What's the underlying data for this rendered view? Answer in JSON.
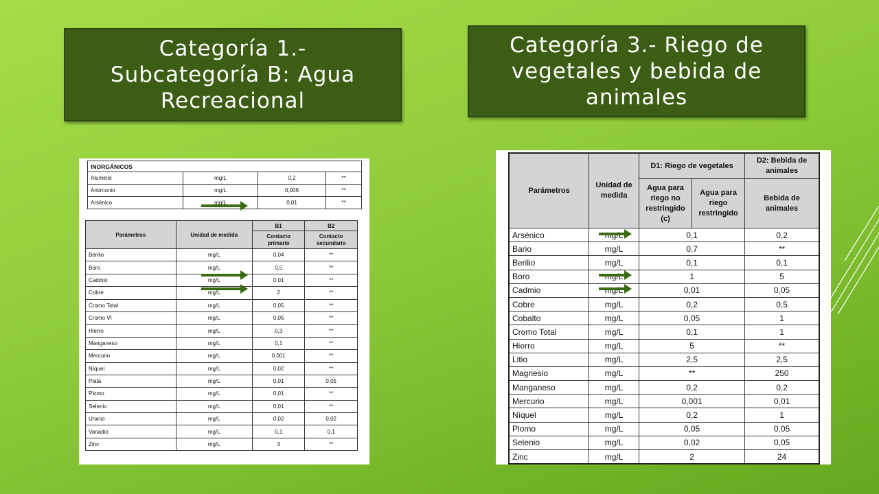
{
  "titles": {
    "left": [
      "Categoría 1.-",
      "Subcategoría B: Agua",
      "Recreacional"
    ],
    "right": [
      "Categoría 3.- Riego de",
      "vegetales y bebida de",
      "animales"
    ]
  },
  "left_table_top": {
    "header": "INORGÁNICOS",
    "rows": [
      [
        "Aluminio",
        "mg/L",
        "0,2",
        "**"
      ],
      [
        "Antimonio",
        "mg/L",
        "0,006",
        "**"
      ],
      [
        "Arsénico",
        "mg/L",
        "0,01",
        "**"
      ]
    ]
  },
  "left_table": {
    "headers": {
      "param": "Parámetros",
      "unit": "Unidad de medida",
      "b1": "B1",
      "b2": "B2",
      "b1_sub": "Contacto primario",
      "b2_sub": "Contacto secundario"
    },
    "rows": [
      [
        "Berilio",
        "mg/L",
        "0,04",
        "**"
      ],
      [
        "Boro",
        "mg/L",
        "0,5",
        "**"
      ],
      [
        "Cadmio",
        "mg/L",
        "0,01",
        "**"
      ],
      [
        "Cobre",
        "mg/L",
        "2",
        "**"
      ],
      [
        "Cromo Total",
        "mg/L",
        "0,05",
        "**"
      ],
      [
        "Cromo VI",
        "mg/L",
        "0,05",
        "**"
      ],
      [
        "Hierro",
        "mg/L",
        "0,3",
        "**"
      ],
      [
        "Manganeso",
        "mg/L",
        "0,1",
        "**"
      ],
      [
        "Mercurio",
        "mg/L",
        "0,001",
        "**"
      ],
      [
        "Níquel",
        "mg/L",
        "0,02",
        "**"
      ],
      [
        "Plata",
        "mg/L",
        "0,01",
        "0,05"
      ],
      [
        "Plomo",
        "mg/L",
        "0,01",
        "**"
      ],
      [
        "Selenio",
        "mg/L",
        "0,01",
        "**"
      ],
      [
        "Uranio",
        "mg/L",
        "0,02",
        "0,02"
      ],
      [
        "Vanadio",
        "mg/L",
        "0,1",
        "0,1"
      ],
      [
        "Zinc",
        "mg/L",
        "3",
        "**"
      ]
    ]
  },
  "right_table": {
    "headers": {
      "param": "Parámetros",
      "unit": "Unidad de medida",
      "d1": "D1: Riego de vegetales",
      "d2": "D2: Bebida de animales",
      "d1_a": "Agua para riego no restringido (c)",
      "d1_b": "Agua para riego restringido",
      "d2_a": "Bebida de animales"
    },
    "rows": [
      [
        "Arsénico",
        "mg/L",
        "0,1",
        "0,2"
      ],
      [
        "Bario",
        "mg/L",
        "0,7",
        "**"
      ],
      [
        "Berilio",
        "mg/L",
        "0,1",
        "0,1"
      ],
      [
        "Boro",
        "mg/L",
        "1",
        "5"
      ],
      [
        "Cadmio",
        "mg/L",
        "0,01",
        "0,05"
      ],
      [
        "Cobre",
        "mg/L",
        "0,2",
        "0,5"
      ],
      [
        "Cobalto",
        "mg/L",
        "0,05",
        "1"
      ],
      [
        "Cromo Total",
        "mg/L",
        "0,1",
        "1"
      ],
      [
        "Hierro",
        "mg/L",
        "5",
        "**"
      ],
      [
        "Litio",
        "mg/L",
        "2,5",
        "2,5"
      ],
      [
        "Magnesio",
        "mg/L",
        "**",
        "250"
      ],
      [
        "Manganeso",
        "mg/L",
        "0,2",
        "0,2"
      ],
      [
        "Mercurio",
        "mg/L",
        "0,001",
        "0,01"
      ],
      [
        "Níquel",
        "mg/L",
        "0,2",
        "1"
      ],
      [
        "Plomo",
        "mg/L",
        "0,05",
        "0,05"
      ],
      [
        "Selenio",
        "mg/L",
        "0,02",
        "0,05"
      ],
      [
        "Zinc",
        "mg/L",
        "2",
        "24"
      ]
    ]
  },
  "colors": {
    "title_box": "#3b5e14",
    "arrow": "#3b6a13",
    "background": "#8fcc3a"
  }
}
